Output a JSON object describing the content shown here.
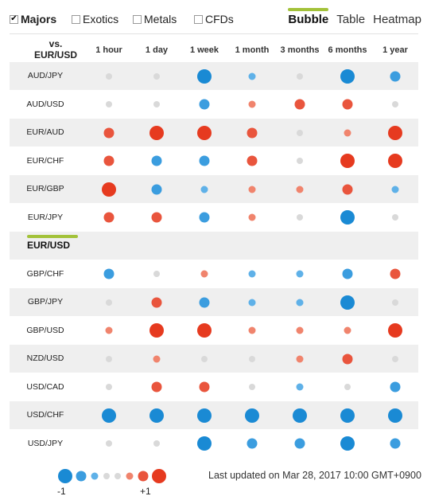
{
  "filters": [
    {
      "label": "Majors",
      "checked": true
    },
    {
      "label": "Exotics",
      "checked": false
    },
    {
      "label": "Metals",
      "checked": false
    },
    {
      "label": "CFDs",
      "checked": false
    }
  ],
  "views": [
    {
      "label": "Bubble",
      "active": true
    },
    {
      "label": "Table",
      "active": false
    },
    {
      "label": "Heatmap",
      "active": false
    }
  ],
  "base": {
    "line1": "vs.",
    "line2": "EUR/USD"
  },
  "columns": [
    "1 hour",
    "1 day",
    "1 week",
    "1 month",
    "3 months",
    "6 months",
    "1 year"
  ],
  "rows_top": [
    {
      "pair": "AUD/JPY",
      "values": [
        0,
        0,
        -1,
        -0.3,
        0,
        -1,
        -0.6
      ]
    },
    {
      "pair": "AUD/USD",
      "values": [
        0,
        0,
        -0.6,
        0.3,
        0.7,
        0.6,
        0
      ]
    },
    {
      "pair": "EUR/AUD",
      "values": [
        0.6,
        1,
        1,
        0.6,
        0,
        0.3,
        1
      ]
    },
    {
      "pair": "EUR/CHF",
      "values": [
        0.6,
        -0.6,
        -0.6,
        0.6,
        0,
        1,
        1
      ]
    },
    {
      "pair": "EUR/GBP",
      "values": [
        1,
        -0.6,
        -0.3,
        0.3,
        0.3,
        0.6,
        -0.3
      ]
    },
    {
      "pair": "EUR/JPY",
      "values": [
        0.6,
        0.6,
        -0.6,
        0.3,
        0,
        -1,
        0
      ]
    }
  ],
  "section_label": "EUR/USD",
  "rows_bottom": [
    {
      "pair": "GBP/CHF",
      "values": [
        -0.6,
        0,
        0.3,
        -0.3,
        -0.3,
        -0.6,
        0.6
      ]
    },
    {
      "pair": "GBP/JPY",
      "values": [
        0,
        0.6,
        -0.6,
        -0.3,
        -0.3,
        -1,
        0
      ]
    },
    {
      "pair": "GBP/USD",
      "values": [
        0.3,
        1,
        1,
        0.3,
        0.3,
        0.3,
        1
      ]
    },
    {
      "pair": "NZD/USD",
      "values": [
        0,
        0.3,
        0,
        0,
        0.3,
        0.6,
        0
      ]
    },
    {
      "pair": "USD/CAD",
      "values": [
        0,
        0.6,
        0.6,
        0,
        -0.3,
        0,
        -0.6
      ]
    },
    {
      "pair": "USD/CHF",
      "values": [
        -1,
        -1,
        -1,
        -1,
        -1,
        -1,
        -1
      ]
    },
    {
      "pair": "USD/JPY",
      "values": [
        0,
        0,
        -1,
        -0.6,
        -0.6,
        -1,
        -0.6
      ]
    }
  ],
  "legend": {
    "min_label": "-1",
    "max_label": "+1"
  },
  "updated": "Last updated on Mar 28, 2017 10:00 GMT+0900",
  "colors": {
    "negative": "#1a8ad4",
    "positive": "#e63a1f",
    "neutral": "#d9d9d9",
    "accent": "#a3c23a",
    "row_shade": "#efefef"
  }
}
